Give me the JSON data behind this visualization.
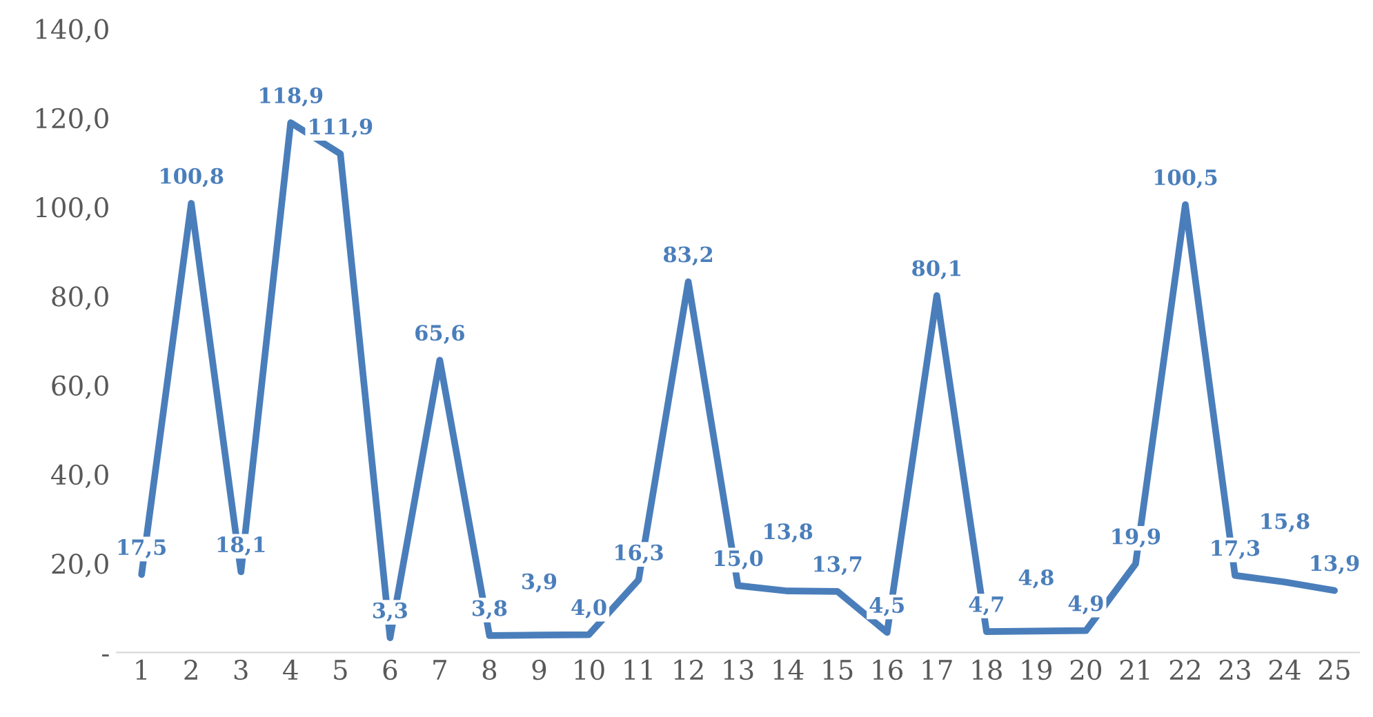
{
  "chart_data": {
    "type": "line",
    "categories": [
      "1",
      "2",
      "3",
      "4",
      "5",
      "6",
      "7",
      "8",
      "9",
      "10",
      "11",
      "12",
      "13",
      "14",
      "15",
      "16",
      "17",
      "18",
      "19",
      "20",
      "21",
      "22",
      "23",
      "24",
      "25"
    ],
    "series": [
      {
        "color": "#4a7ebb",
        "values": [
          17.5,
          100.8,
          18.1,
          118.9,
          111.9,
          3.3,
          65.6,
          3.8,
          3.9,
          4.0,
          16.3,
          83.2,
          15.0,
          13.8,
          13.7,
          4.5,
          80.1,
          4.7,
          4.8,
          4.9,
          19.9,
          100.5,
          17.3,
          15.8,
          13.9
        ],
        "value_labels": [
          "17,5",
          "100,8",
          "18,1",
          "118,9",
          "111,9",
          "3,3",
          "65,6",
          "3,8",
          "3,9",
          "4,0",
          "16,3",
          "83,2",
          "15,0",
          "13,8",
          "13,7",
          "4,5",
          "80,1",
          "4,7",
          "4,8",
          "4,9",
          "19,9",
          "100,5",
          "17,3",
          "15,8",
          "13,9"
        ]
      }
    ],
    "ylim": [
      0,
      140
    ],
    "yticks": [
      {
        "value": 0,
        "label": "-"
      },
      {
        "value": 20,
        "label": "20,0"
      },
      {
        "value": 40,
        "label": "40,0"
      },
      {
        "value": 60,
        "label": "60,0"
      },
      {
        "value": 80,
        "label": "80,0"
      },
      {
        "value": 100,
        "label": "100,0"
      },
      {
        "value": 120,
        "label": "120,0"
      },
      {
        "value": 140,
        "label": "140,0"
      }
    ],
    "grid": false,
    "legend": false,
    "marker": "none",
    "line_style": "solid"
  }
}
